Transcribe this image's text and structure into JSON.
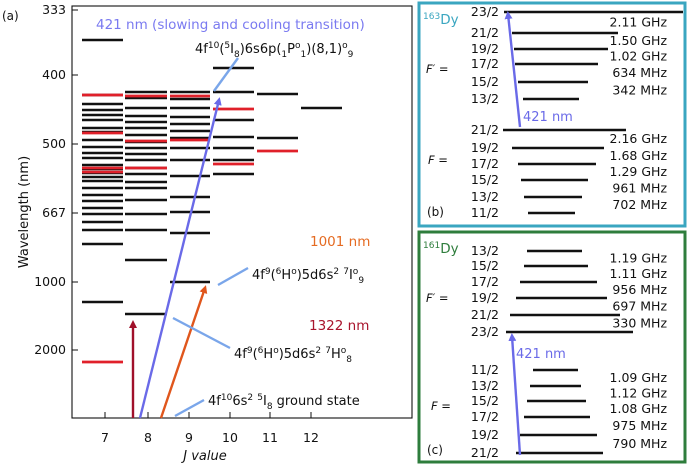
{
  "panel_a": {
    "tag": "(a)",
    "ylabel": "Wavelength (nm)",
    "xlabel": "J value",
    "y_ticks": [
      "333",
      "400",
      "500",
      "667",
      "1000",
      "2000"
    ],
    "x_ticks": [
      "7",
      "8",
      "9",
      "10",
      "11",
      "12"
    ],
    "transition_421_label": "421 nm (slowing and cooling transition)",
    "transition_1001_label": "1001 nm",
    "transition_1322_label": "1322 nm",
    "state_excited_421": {
      "base": "4f",
      "s1": "10",
      "mid1": "(",
      "s2": "5",
      "mid2": "I",
      "s3": "8",
      "mid3": ")6s6p(",
      "s4": "1",
      "mid4": "P",
      "s5": "o",
      "s6": "1",
      "mid5": ")(8,1)",
      "s7": "o",
      "s8": "9"
    },
    "state_1001": {
      "base": "4f",
      "s1": "9",
      "mid1": "(",
      "s2": "6",
      "mid2": "H",
      "s3": "o",
      "mid3": ")5d6s",
      "s4": "2",
      "mid4": " ",
      "s5": "7",
      "mid5": "I",
      "s6": "o",
      "s7": "9"
    },
    "state_1322": {
      "base": "4f",
      "s1": "9",
      "mid1": "(",
      "s2": "6",
      "mid2": "H",
      "s3": "o",
      "mid3": ")5d6s",
      "s4": "2",
      "mid4": " ",
      "s5": "7",
      "mid5": "H",
      "s6": "o",
      "s7": "8"
    },
    "ground_state": {
      "base": "4f",
      "s1": "10",
      "mid1": "6s",
      "s2": "2",
      "mid2": " ",
      "s3": "5",
      "mid3": "I",
      "s4": "8",
      "tail": " ground state"
    }
  },
  "panel_b": {
    "tag": "(b)",
    "isotope_mass": "163",
    "isotope_symbol": "Dy",
    "upper_symbol": "F′ =",
    "lower_symbol": "F =",
    "arrow_label": "421 nm",
    "upper_levels": [
      "23/2",
      "21/2",
      "19/2",
      "17/2",
      "15/2",
      "13/2"
    ],
    "upper_splittings": [
      "2.11 GHz",
      "1.50 GHz",
      "1.02 GHz",
      "634 MHz",
      "342 MHz"
    ],
    "lower_levels": [
      "21/2",
      "19/2",
      "17/2",
      "15/2",
      "13/2",
      "11/2"
    ],
    "lower_splittings": [
      "2.16 GHz",
      "1.68 GHz",
      "1.29 GHz",
      "961 MHz",
      "702 MHz"
    ]
  },
  "panel_c": {
    "tag": "(c)",
    "isotope_mass": "161",
    "isotope_symbol": "Dy",
    "upper_symbol": "F′ =",
    "lower_symbol": "F =",
    "arrow_label": "421 nm",
    "upper_levels": [
      "13/2",
      "15/2",
      "17/2",
      "19/2",
      "21/2",
      "23/2"
    ],
    "upper_splittings": [
      "1.19 GHz",
      "1.11 GHz",
      "956 MHz",
      "697 MHz",
      "330 MHz"
    ],
    "lower_levels": [
      "11/2",
      "13/2",
      "15/2",
      "17/2",
      "19/2",
      "21/2"
    ],
    "lower_splittings": [
      "1.09 GHz",
      "1.12 GHz",
      "1.08 GHz",
      "975 MHz",
      "790 MHz"
    ]
  },
  "colors": {
    "blue": "#6a6ae8",
    "orange": "#e0561c",
    "darkred": "#a0102a",
    "label_blue": "#7a7af0",
    "label_orange": "#e56b22",
    "label_red": "#a8142c",
    "pointer": "#7aa6ea",
    "red_level": "#e0202a",
    "frame_b": "#3aa6c0",
    "frame_c": "#2e7d3c"
  }
}
